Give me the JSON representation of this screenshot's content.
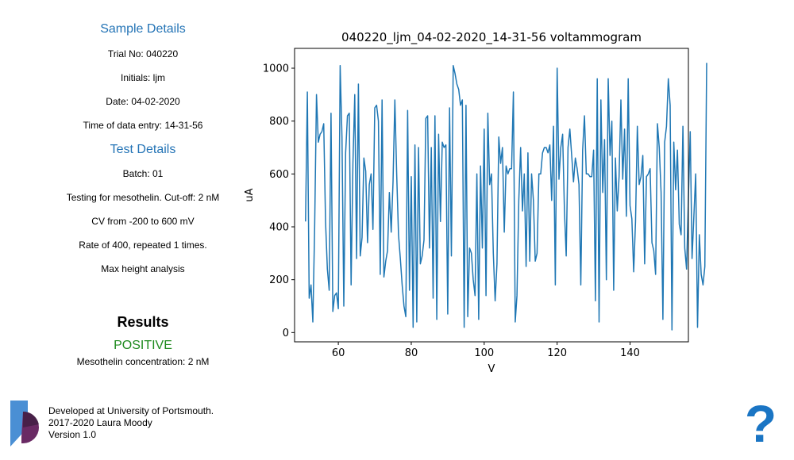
{
  "sample": {
    "heading": "Sample Details",
    "trial": "Trial No: 040220",
    "initials": "Initials: ljm",
    "date": "Date: 04-02-2020",
    "time": "Time of data entry: 14-31-56"
  },
  "test": {
    "heading": "Test Details",
    "batch": "Batch: 01",
    "testing": "Testing for mesothelin. Cut-off: 2 nM",
    "cv": "CV from -200 to 600 mV",
    "rate": "Rate of 400, repeated 1 times.",
    "analysis": "Max height analysis"
  },
  "results": {
    "title": "Results",
    "value": "POSITIVE",
    "concentration": "Mesothelin concentration: 2 nM",
    "value_color": "#1e8a1e"
  },
  "footer": {
    "line1": "Developed at University of Portsmouth.",
    "line2": "2017-2020 Laura Moody",
    "line3": "Version 1.0"
  },
  "help": {
    "label": "?",
    "icon": "question-mark-icon"
  },
  "logo": {
    "icon": "university-of-portsmouth-logo-icon"
  },
  "chart_data": {
    "type": "line",
    "title": "040220_ljm_04-02-2020_14-31-56 voltammogram",
    "xlabel": "V",
    "ylabel": "uA",
    "xlim": [
      48,
      156
    ],
    "ylim": [
      -35,
      1075
    ],
    "xticks": [
      60,
      80,
      100,
      120,
      140
    ],
    "yticks": [
      0,
      200,
      400,
      600,
      800,
      1000
    ],
    "grid": false,
    "color": "#1f77b4",
    "x_start": 51,
    "x_step": 0.5,
    "values": [
      420,
      910,
      130,
      180,
      40,
      400,
      900,
      720,
      750,
      760,
      790,
      420,
      240,
      160,
      830,
      80,
      140,
      150,
      90,
      1010,
      740,
      100,
      680,
      820,
      830,
      180,
      640,
      900,
      280,
      940,
      290,
      360,
      660,
      610,
      340,
      560,
      600,
      390,
      850,
      860,
      800,
      220,
      880,
      210,
      270,
      310,
      530,
      380,
      570,
      880,
      600,
      370,
      280,
      180,
      100,
      60,
      840,
      160,
      590,
      20,
      710,
      40,
      700,
      260,
      290,
      350,
      810,
      820,
      320,
      700,
      130,
      820,
      50,
      750,
      420,
      720,
      700,
      710,
      70,
      850,
      290,
      1010,
      980,
      940,
      920,
      860,
      880,
      20,
      860,
      60,
      320,
      300,
      200,
      140,
      600,
      50,
      630,
      320,
      770,
      140,
      830,
      560,
      600,
      300,
      120,
      260,
      740,
      640,
      700,
      380,
      630,
      600,
      620,
      620,
      910,
      40,
      140,
      500,
      700,
      460,
      600,
      250,
      680,
      270,
      600,
      500,
      270,
      300,
      600,
      600,
      680,
      700,
      700,
      680,
      710,
      500,
      780,
      180,
      1000,
      580,
      700,
      750,
      460,
      290,
      700,
      770,
      670,
      570,
      660,
      620,
      560,
      180,
      690,
      820,
      600,
      600,
      590,
      590,
      690,
      120,
      960,
      40,
      880,
      530,
      730,
      200,
      960,
      670,
      800,
      160,
      660,
      460,
      590,
      880,
      580,
      770,
      440,
      960,
      480,
      430,
      230,
      420,
      780,
      560,
      590,
      670,
      260,
      590,
      600,
      620,
      340,
      310,
      220,
      790,
      700,
      530,
      50,
      720,
      780,
      960,
      860,
      10,
      720,
      540,
      690,
      410,
      370,
      780,
      320,
      240,
      510,
      760,
      280,
      440,
      600,
      20,
      370,
      220,
      180,
      250,
      1020
    ]
  }
}
